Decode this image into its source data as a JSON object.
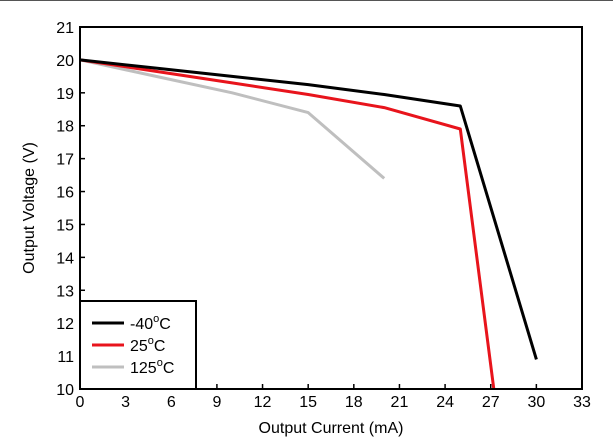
{
  "chart_data": {
    "type": "line",
    "title": "",
    "xlabel": "Output Current (mA)",
    "ylabel": "Output Voltage (V)",
    "xlim": [
      0,
      33
    ],
    "ylim": [
      10,
      21
    ],
    "xticks": [
      0,
      3,
      6,
      9,
      12,
      15,
      18,
      21,
      24,
      27,
      30,
      33
    ],
    "xtick_labels": [
      "0",
      "3",
      "6",
      "9",
      "12",
      "15",
      "18",
      "21",
      "24",
      "27",
      "30",
      "33"
    ],
    "yticks": [
      10,
      11,
      12,
      13,
      14,
      15,
      16,
      17,
      18,
      19,
      20,
      21
    ],
    "ytick_labels": [
      "10",
      "11",
      "12",
      "13",
      "14",
      "15",
      "16",
      "17",
      "18",
      "19",
      "20",
      "21"
    ],
    "grid": false,
    "legend_position": "bottom-left",
    "series": [
      {
        "name": "-40",
        "name_sup": "o",
        "name_suffix": "C",
        "color": "#000000",
        "x": [
          0,
          5,
          10,
          15,
          20,
          25,
          30
        ],
        "y": [
          20.0,
          19.75,
          19.5,
          19.25,
          18.95,
          18.6,
          10.9
        ]
      },
      {
        "name": "25",
        "name_sup": "o",
        "name_suffix": "C",
        "color": "#e8141c",
        "x": [
          0,
          5,
          10,
          15,
          20,
          25,
          27.2
        ],
        "y": [
          20.0,
          19.65,
          19.3,
          18.95,
          18.55,
          17.9,
          10.0
        ]
      },
      {
        "name": "125",
        "name_sup": "o",
        "name_suffix": "C",
        "color": "#bfbfbf",
        "x": [
          0,
          5,
          10,
          15,
          20
        ],
        "y": [
          20.0,
          19.5,
          19.0,
          18.4,
          16.4
        ]
      }
    ]
  }
}
